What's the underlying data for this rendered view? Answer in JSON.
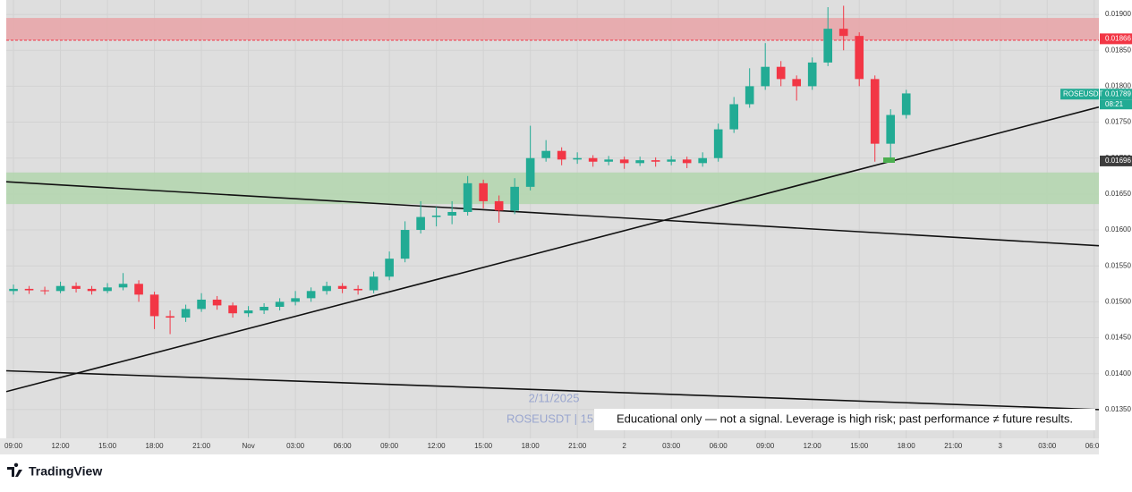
{
  "chart_data": {
    "type": "candlestick",
    "symbol_label": "ROSEUSDT",
    "timer_label": "08:21",
    "watermark_date": "2/11/2025",
    "watermark_symbol": "ROSEUSDT | 15",
    "disclaimer": "Educational only — not a signal. Leverage is high risk; past performance ≠ future results.",
    "brand": "TradingView",
    "up_color": "#22ab94",
    "down_color": "#f23645",
    "xlim": [
      -0.46,
      69.3
    ],
    "ylim": [
      0.0131,
      0.0192
    ],
    "xticks": [
      {
        "value": 0,
        "label": "09:00"
      },
      {
        "value": 3,
        "label": "12:00"
      },
      {
        "value": 6,
        "label": "15:00"
      },
      {
        "value": 9,
        "label": "18:00"
      },
      {
        "value": 12,
        "label": "21:00"
      },
      {
        "value": 15,
        "label": "Nov"
      },
      {
        "value": 18,
        "label": "03:00"
      },
      {
        "value": 21,
        "label": "06:00"
      },
      {
        "value": 24,
        "label": "09:00"
      },
      {
        "value": 27,
        "label": "12:00"
      },
      {
        "value": 30,
        "label": "15:00"
      },
      {
        "value": 33,
        "label": "18:00"
      },
      {
        "value": 36,
        "label": "21:00"
      },
      {
        "value": 39,
        "label": "2"
      },
      {
        "value": 42,
        "label": "03:00"
      },
      {
        "value": 45,
        "label": "06:00"
      },
      {
        "value": 48,
        "label": "09:00"
      },
      {
        "value": 51,
        "label": "12:00"
      },
      {
        "value": 54,
        "label": "15:00"
      },
      {
        "value": 57,
        "label": "18:00"
      },
      {
        "value": 60,
        "label": "21:00"
      },
      {
        "value": 63,
        "label": "3"
      },
      {
        "value": 66,
        "label": "03:00"
      },
      {
        "value": 69,
        "label": "06:00"
      }
    ],
    "yticks": [
      {
        "value": 0.019,
        "label": "0.01900"
      },
      {
        "value": 0.0185,
        "label": "0.01850"
      },
      {
        "value": 0.018,
        "label": "0.01800"
      },
      {
        "value": 0.0175,
        "label": "0.01750"
      },
      {
        "value": 0.017,
        "label": "0.01700"
      },
      {
        "value": 0.0165,
        "label": "0.01650"
      },
      {
        "value": 0.016,
        "label": "0.01600"
      },
      {
        "value": 0.0155,
        "label": "0.01550"
      },
      {
        "value": 0.015,
        "label": "0.01500"
      },
      {
        "value": 0.0145,
        "label": "0.01450"
      },
      {
        "value": 0.014,
        "label": "0.01400"
      },
      {
        "value": 0.0135,
        "label": "0.01350"
      }
    ],
    "x": [
      0,
      1,
      2,
      3,
      4,
      5,
      6,
      7,
      8,
      9,
      10,
      11,
      12,
      13,
      14,
      15,
      16,
      17,
      18,
      19,
      20,
      21,
      22,
      23,
      24,
      25,
      26,
      27,
      28,
      29,
      30,
      31,
      32,
      33,
      34,
      35,
      36,
      37,
      38,
      39,
      40,
      41,
      42,
      43,
      44,
      45,
      46,
      47,
      48,
      49,
      50,
      51,
      52,
      53,
      54,
      55,
      56,
      57
    ],
    "open": [
      0.01515,
      0.01518,
      0.01516,
      0.01515,
      0.01522,
      0.01518,
      0.01515,
      0.0152,
      0.01525,
      0.0151,
      0.0148,
      0.01478,
      0.0149,
      0.01503,
      0.01495,
      0.01484,
      0.01488,
      0.01493,
      0.015,
      0.01505,
      0.01515,
      0.01522,
      0.01518,
      0.01516,
      0.01535,
      0.0156,
      0.016,
      0.01618,
      0.0162,
      0.01625,
      0.01665,
      0.0164,
      0.01627,
      0.0166,
      0.017,
      0.0171,
      0.01698,
      0.017,
      0.01695,
      0.01698,
      0.01693,
      0.01697,
      0.01695,
      0.01698,
      0.01693,
      0.017,
      0.0174,
      0.01775,
      0.018,
      0.01827,
      0.0181,
      0.018,
      0.01833,
      0.0188,
      0.0187,
      0.0181,
      0.0172,
      0.0176
    ],
    "high": [
      0.01524,
      0.01522,
      0.01521,
      0.01528,
      0.01527,
      0.01522,
      0.01526,
      0.0154,
      0.0153,
      0.01514,
      0.01488,
      0.01496,
      0.01512,
      0.01508,
      0.01499,
      0.01494,
      0.01498,
      0.01505,
      0.01515,
      0.0152,
      0.01528,
      0.01526,
      0.01523,
      0.01542,
      0.0157,
      0.01612,
      0.0164,
      0.01632,
      0.0164,
      0.01675,
      0.0167,
      0.01648,
      0.01672,
      0.01745,
      0.01725,
      0.01715,
      0.01708,
      0.01704,
      0.01703,
      0.01702,
      0.01702,
      0.01701,
      0.01703,
      0.01702,
      0.01708,
      0.01748,
      0.01785,
      0.01825,
      0.0186,
      0.01835,
      0.01815,
      0.0184,
      0.0191,
      0.01912,
      0.01875,
      0.01815,
      0.01768,
      0.01795
    ],
    "low": [
      0.0151,
      0.01511,
      0.0151,
      0.01512,
      0.01513,
      0.0151,
      0.01512,
      0.01516,
      0.015,
      0.01462,
      0.01455,
      0.01472,
      0.01486,
      0.01489,
      0.01478,
      0.01479,
      0.01483,
      0.01488,
      0.01495,
      0.015,
      0.0151,
      0.01512,
      0.0151,
      0.01512,
      0.0153,
      0.01555,
      0.01595,
      0.01605,
      0.01608,
      0.0162,
      0.0163,
      0.0161,
      0.01622,
      0.01655,
      0.01695,
      0.0169,
      0.01692,
      0.01688,
      0.0169,
      0.01685,
      0.01689,
      0.01688,
      0.0169,
      0.01686,
      0.01688,
      0.01695,
      0.01735,
      0.0177,
      0.01795,
      0.018,
      0.0178,
      0.01795,
      0.01828,
      0.0185,
      0.018,
      0.01695,
      0.017,
      0.01755
    ],
    "close": [
      0.01518,
      0.01516,
      0.01515,
      0.01522,
      0.01518,
      0.01515,
      0.0152,
      0.01525,
      0.0151,
      0.0148,
      0.01478,
      0.0149,
      0.01503,
      0.01495,
      0.01484,
      0.01488,
      0.01493,
      0.015,
      0.01505,
      0.01515,
      0.01522,
      0.01518,
      0.01516,
      0.01535,
      0.0156,
      0.016,
      0.01618,
      0.0162,
      0.01625,
      0.01665,
      0.0164,
      0.01627,
      0.0166,
      0.017,
      0.0171,
      0.01698,
      0.017,
      0.01695,
      0.01698,
      0.01693,
      0.01697,
      0.01695,
      0.01698,
      0.01693,
      0.017,
      0.0174,
      0.01775,
      0.018,
      0.01827,
      0.0181,
      0.018,
      0.01833,
      0.0188,
      0.0187,
      0.0181,
      0.0172,
      0.0176,
      0.0179
    ],
    "zones": [
      {
        "from": 0.01895,
        "to": 0.01864,
        "color": "#e8a6aa"
      },
      {
        "from": 0.0168,
        "to": 0.01636,
        "color": "#b5d6b0"
      }
    ],
    "trend_lines": [
      {
        "x": [
          -0.46,
          69.3
        ],
        "y": [
          0.01667,
          0.01578
        ]
      },
      {
        "x": [
          -0.46,
          69.3
        ],
        "y": [
          0.01375,
          0.01771
        ]
      },
      {
        "x": [
          -0.46,
          69.3
        ],
        "y": [
          0.01404,
          0.0135
        ]
      }
    ],
    "price_labels": [
      {
        "value": 0.01866,
        "color": "#f23645"
      },
      {
        "value": 0.01789,
        "color": "#22ab94"
      },
      {
        "value": 0.01696,
        "color": "#3d3d3d"
      }
    ]
  }
}
